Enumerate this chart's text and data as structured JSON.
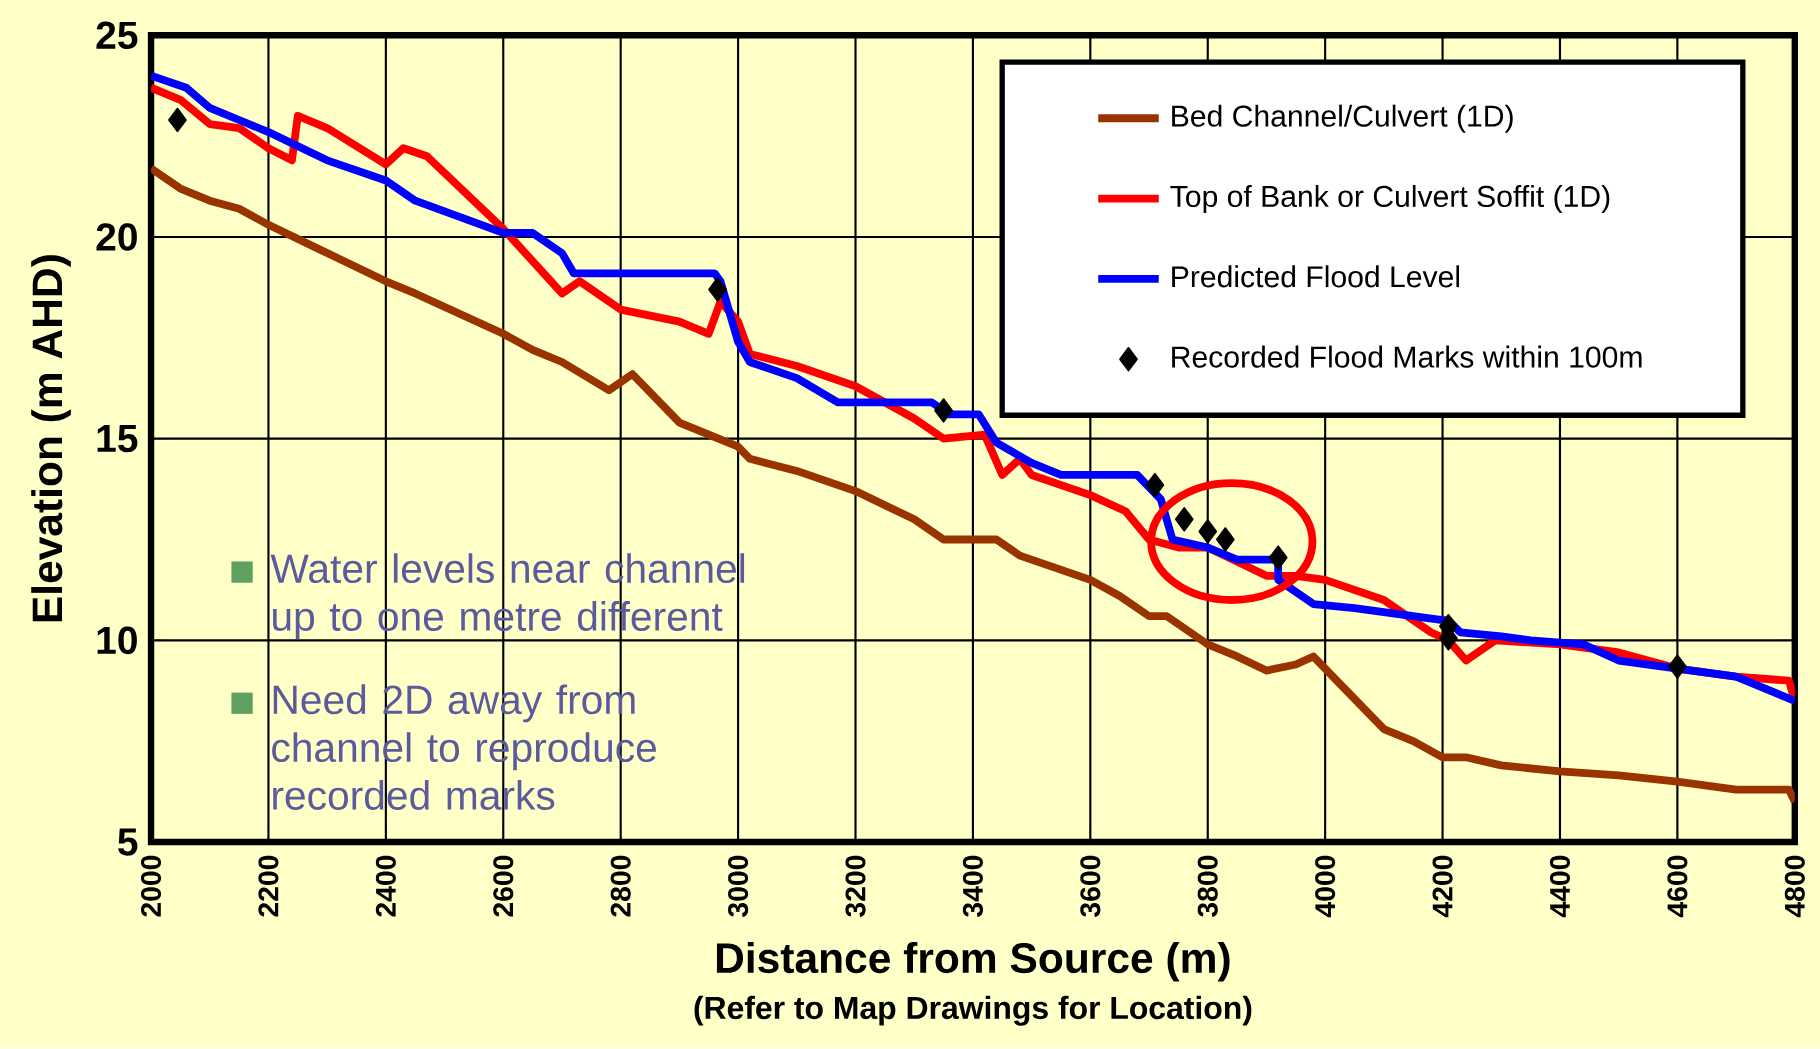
{
  "chart_data": {
    "type": "line",
    "xlabel": "Distance from Source (m)",
    "ylabel": "Elevation (m AHD)",
    "annotations": [
      "Water levels near channel up to one metre different",
      "Need 2D away from channel to reproduce recorded marks",
      "(Refer to Map Drawings for Location)"
    ],
    "xlim": [
      2000,
      4800
    ],
    "ylim": [
      5,
      25
    ],
    "xticks": [
      2000,
      2200,
      2400,
      2600,
      2800,
      3000,
      3200,
      3400,
      3600,
      3800,
      4000,
      4200,
      4400,
      4600,
      4800
    ],
    "yticks": [
      5,
      10,
      15,
      20,
      25
    ],
    "grid": true,
    "legend": "top right",
    "series": [
      {
        "name": "Bed Channel/Culvert (1D)",
        "color": "#993300",
        "marker": "none",
        "x": [
          2000,
          2050,
          2100,
          2150,
          2200,
          2300,
          2400,
          2450,
          2600,
          2650,
          2700,
          2780,
          2820,
          2900,
          2950,
          3000,
          3020,
          3100,
          3200,
          3300,
          3350,
          3440,
          3480,
          3600,
          3650,
          3700,
          3730,
          3800,
          3850,
          3900,
          3950,
          3980,
          4020,
          4100,
          4150,
          4200,
          4240,
          4300,
          4400,
          4500,
          4600,
          4700,
          4790,
          4800
        ],
        "values": [
          21.7,
          21.2,
          20.9,
          20.7,
          20.3,
          19.6,
          18.9,
          18.6,
          17.6,
          17.2,
          16.9,
          16.2,
          16.6,
          15.4,
          15.1,
          14.8,
          14.5,
          14.2,
          13.7,
          13.0,
          12.5,
          12.5,
          12.1,
          11.5,
          11.1,
          10.6,
          10.6,
          9.9,
          9.6,
          9.25,
          9.4,
          9.6,
          9.0,
          7.8,
          7.5,
          7.1,
          7.1,
          6.9,
          6.75,
          6.65,
          6.5,
          6.3,
          6.3,
          6.0
        ]
      },
      {
        "name": "Top of Bank or Culvert Soffit (1D)",
        "color": "#ff0000",
        "marker": "none",
        "x": [
          2000,
          2050,
          2100,
          2150,
          2200,
          2240,
          2250,
          2300,
          2400,
          2430,
          2470,
          2600,
          2650,
          2700,
          2730,
          2800,
          2900,
          2950,
          2970,
          3000,
          3020,
          3100,
          3200,
          3300,
          3350,
          3420,
          3450,
          3480,
          3500,
          3600,
          3660,
          3700,
          3750,
          3800,
          3900,
          3950,
          4000,
          4100,
          4180,
          4210,
          4240,
          4290,
          4400,
          4450,
          4500,
          4600,
          4700,
          4790,
          4800
        ],
        "values": [
          23.7,
          23.4,
          22.8,
          22.7,
          22.2,
          21.9,
          23.0,
          22.7,
          21.8,
          22.2,
          22.0,
          20.2,
          19.4,
          18.6,
          18.9,
          18.2,
          17.9,
          17.6,
          18.4,
          17.9,
          17.1,
          16.8,
          16.3,
          15.5,
          15.0,
          15.1,
          14.1,
          14.5,
          14.1,
          13.6,
          13.2,
          12.5,
          12.3,
          12.3,
          11.6,
          11.6,
          11.5,
          11.0,
          10.2,
          10.0,
          9.5,
          10.0,
          9.9,
          9.8,
          9.7,
          9.3,
          9.1,
          9.0,
          8.5
        ]
      },
      {
        "name": "Predicted Flood Level",
        "color": "#0000ff",
        "marker": "none",
        "x": [
          2000,
          2060,
          2100,
          2150,
          2200,
          2300,
          2400,
          2450,
          2600,
          2650,
          2700,
          2720,
          2960,
          2970,
          3000,
          3020,
          3100,
          3170,
          3330,
          3360,
          3410,
          3440,
          3500,
          3550,
          3680,
          3720,
          3740,
          3800,
          3850,
          3920,
          3920,
          3980,
          4050,
          4100,
          4200,
          4210,
          4230,
          4300,
          4350,
          4440,
          4500,
          4600,
          4700,
          4800
        ],
        "values": [
          24.0,
          23.7,
          23.2,
          22.9,
          22.6,
          21.9,
          21.4,
          20.9,
          20.1,
          20.1,
          19.6,
          19.1,
          19.1,
          18.9,
          17.4,
          16.9,
          16.5,
          15.9,
          15.9,
          15.6,
          15.6,
          14.9,
          14.4,
          14.1,
          14.1,
          13.5,
          12.5,
          12.3,
          12.0,
          12.0,
          11.5,
          10.9,
          10.8,
          10.7,
          10.5,
          10.5,
          10.2,
          10.1,
          10.0,
          9.9,
          9.5,
          9.3,
          9.1,
          8.5
        ]
      },
      {
        "name": "Recorded Flood Marks within 100m",
        "type": "scatter",
        "color": "#000000",
        "marker": "diamond",
        "x": [
          2045,
          2965,
          3350,
          3710,
          3760,
          3800,
          3830,
          3920,
          4210,
          4210,
          4600
        ],
        "values": [
          22.9,
          18.7,
          15.7,
          13.85,
          13.0,
          12.7,
          12.5,
          12.05,
          10.35,
          10.05,
          9.35
        ]
      }
    ]
  }
}
